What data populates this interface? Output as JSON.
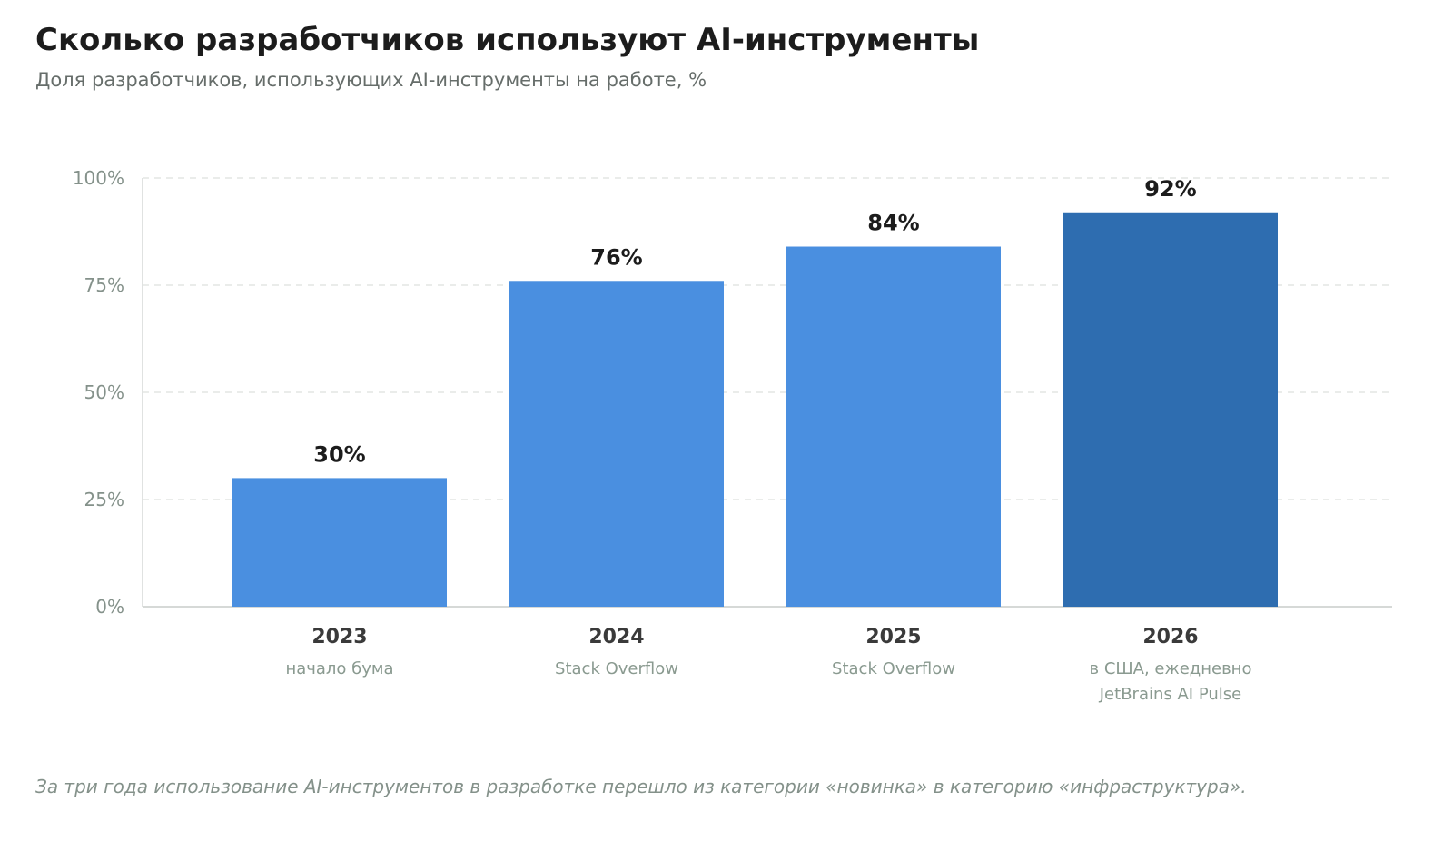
{
  "header": {
    "title": "Сколько разработчиков используют AI-инструменты",
    "subtitle": "Доля разработчиков, использующих AI-инструменты на работе, %"
  },
  "footer": {
    "note": "За три года использование AI-инструментов в разработке перешло из категории «новинка» в категорию «инфраструктура»."
  },
  "colors": {
    "bar": "#4a8fe0",
    "bar_highlight": "#2e6db0",
    "grid": "#e3e6e4",
    "axis": "#d6d9d7",
    "tick_label": "#84918a",
    "value_label": "#1c1c1c",
    "category_label": "#3a3a3a",
    "category_note": "#8a9a90"
  },
  "chart_data": {
    "type": "bar",
    "categories": [
      "2023",
      "2024",
      "2025",
      "2026"
    ],
    "category_notes": [
      [
        "начало бума"
      ],
      [
        "Stack Overflow"
      ],
      [
        "Stack Overflow"
      ],
      [
        "в США, ежедневно",
        "JetBrains AI Pulse"
      ]
    ],
    "values": [
      30,
      76,
      84,
      92
    ],
    "value_labels": [
      "30%",
      "76%",
      "84%",
      "92%"
    ],
    "highlight_index": 3,
    "ylim": [
      0,
      100
    ],
    "yticks": [
      0,
      25,
      50,
      75,
      100
    ],
    "ytick_labels": [
      "0%",
      "25%",
      "50%",
      "75%",
      "100%"
    ],
    "grid": true,
    "grid_style": "dashed"
  }
}
